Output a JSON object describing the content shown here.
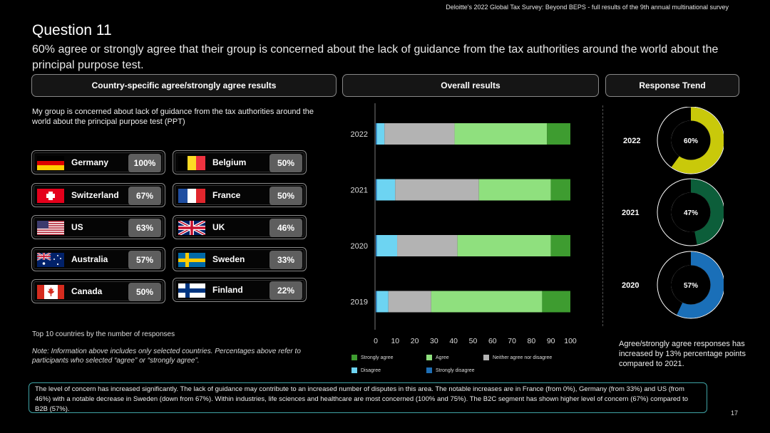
{
  "source_line": "Deloitte's 2022 Global Tax Survey: Beyond BEPS  - full results of the 9th annual multinational survey",
  "title": "Question 11",
  "subtitle": "60% agree or strongly agree that their group is concerned about the lack of guidance from the tax authorities around the world about the principal purpose test.",
  "panels": {
    "country": "Country-specific agree/strongly agree results",
    "overall": "Overall results",
    "trend": "Response Trend"
  },
  "question_text": "My group is concerned about lack of guidance from the tax authorities around the world about the principal purpose test (PPT)",
  "countries": [
    {
      "name": "Germany",
      "pct": "100%",
      "flag": "germany-flag"
    },
    {
      "name": "Belgium",
      "pct": "50%",
      "flag": "belgium-flag"
    },
    {
      "name": "Switzerland",
      "pct": "67%",
      "flag": "switzerland-flag"
    },
    {
      "name": "France",
      "pct": "50%",
      "flag": "france-flag"
    },
    {
      "name": "US",
      "pct": "63%",
      "flag": "us-flag"
    },
    {
      "name": "UK",
      "pct": "46%",
      "flag": "uk-flag"
    },
    {
      "name": "Australia",
      "pct": "57%",
      "flag": "australia-flag"
    },
    {
      "name": "Sweden",
      "pct": "33%",
      "flag": "sweden-flag"
    },
    {
      "name": "Canada",
      "pct": "50%",
      "flag": "canada-flag"
    },
    {
      "name": "Finland",
      "pct": "22%",
      "flag": "finland-flag"
    }
  ],
  "footnote_top": "Top 10 countries by the number of responses",
  "footnote_note": "Note: Information above includes only selected countries. Percentages above refer to participants who selected “agree” or “strongly agree”.",
  "chart_data": {
    "type": "bar",
    "orientation": "horizontal",
    "stacked": true,
    "categories": [
      "2022",
      "2021",
      "2020",
      "2019"
    ],
    "xlim": [
      0,
      100
    ],
    "xticks": [
      "0",
      "10",
      "20",
      "30",
      "40",
      "50",
      "60",
      "70",
      "80",
      "90",
      "100"
    ],
    "series": [
      {
        "name": "Strongly disagree",
        "color": "#1e6fb5",
        "values": [
          0.5,
          0.5,
          0.5,
          0.5
        ]
      },
      {
        "name": "Disagree",
        "color": "#6dd4f2",
        "values": [
          4,
          9.5,
          10.5,
          6
        ]
      },
      {
        "name": "Neither agree nor disagree",
        "color": "#b3b3b3",
        "values": [
          36,
          43,
          31,
          22
        ]
      },
      {
        "name": "Agree",
        "color": "#8fe07e",
        "values": [
          47.5,
          37,
          48,
          57
        ]
      },
      {
        "name": "Strongly agree",
        "color": "#3e9c30",
        "values": [
          12,
          10,
          10,
          14.5
        ]
      }
    ],
    "legend": [
      {
        "name": "Strongly agree",
        "color": "#3e9c30"
      },
      {
        "name": "Agree",
        "color": "#8fe07e"
      },
      {
        "name": "Neither agree nor disagree",
        "color": "#b3b3b3"
      },
      {
        "name": "Disagree",
        "color": "#6dd4f2"
      },
      {
        "name": "Strongly disagree",
        "color": "#1e6fb5"
      }
    ],
    "legend_position": "bottom",
    "grid": false
  },
  "trend": [
    {
      "year": "2022",
      "value": 60,
      "label": "60%",
      "color": "#c9c90a"
    },
    {
      "year": "2021",
      "value": 47,
      "label": "47%",
      "color": "#0c5e3a"
    },
    {
      "year": "2020",
      "value": 57,
      "label": "57%",
      "color": "#1a6fb8"
    }
  ],
  "trend_note": "Agree/strongly agree responses has increased by 13% percentage points compared to 2021.",
  "bottom_text": "The level of concern has increased significantly. The lack of guidance may contribute to an increased number of disputes in this area. The notable increases are in France (from 0%),  Germany (from 33%) and US (from 46%) with a notable decrease in Sweden (down from 67%).  Within industries, life sciences and healthcare are most concerned (100% and 75%). The B2C segment has shown higher level of concern (67%) compared to B2B (57%).",
  "page_number": "17"
}
